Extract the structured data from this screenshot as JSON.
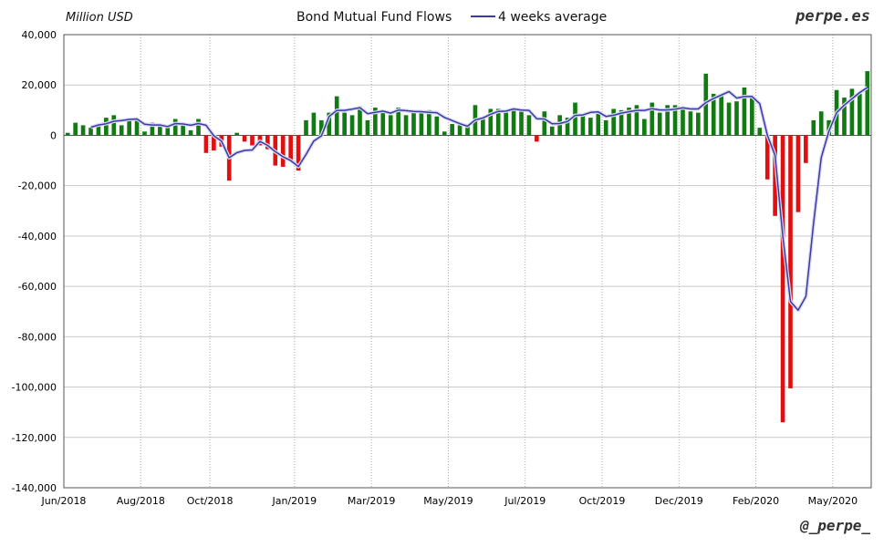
{
  "chart_data": {
    "type": "bar",
    "title": "Bond Mutual Fund Flows",
    "ylabel": "Million USD",
    "ylim": [
      -140000,
      40000
    ],
    "yticks": [
      40000,
      20000,
      0,
      -20000,
      -40000,
      -60000,
      -80000,
      -100000,
      -120000,
      -140000
    ],
    "ytick_labels": [
      "40,000",
      "20,000",
      "0",
      "-20,000",
      "-40,000",
      "-60,000",
      "-80,000",
      "-100,000",
      "-120,000",
      "-140,000"
    ],
    "xtick_labels": [
      "Jun/2018",
      "Aug/2018",
      "Oct/2018",
      "Jan/2019",
      "Mar/2019",
      "May/2019",
      "Jul/2019",
      "Oct/2019",
      "Dec/2019",
      "Feb/2020",
      "May/2020"
    ],
    "xtick_week_index": [
      0,
      10,
      19,
      30,
      40,
      50,
      60,
      70,
      80,
      90,
      100
    ],
    "grid": true,
    "positive_color": "#127a12",
    "negative_color": "#e01010",
    "line_color": "#3a3aa8",
    "series": [
      {
        "name": "Bond Mutual Fund Flows",
        "kind": "bar",
        "values": [
          1000,
          5000,
          4000,
          3000,
          4500,
          7000,
          8000,
          4000,
          6000,
          6000,
          1500,
          5000,
          4000,
          3500,
          6500,
          4000,
          2000,
          6500,
          -7000,
          -6000,
          -4500,
          -18000,
          1000,
          -2500,
          -4000,
          -4000,
          -5500,
          -12000,
          -12500,
          -10000,
          -14000,
          6000,
          9000,
          6000,
          9000,
          15500,
          9000,
          8000,
          11500,
          6000,
          11000,
          10000,
          8000,
          11000,
          8000,
          9000,
          9500,
          10000,
          7500,
          1500,
          4500,
          4000,
          4000,
          12000,
          7000,
          10500,
          10500,
          10000,
          11000,
          10500,
          8000,
          -2500,
          9500,
          3500,
          8000,
          7000,
          13000,
          8500,
          7000,
          8500,
          6000,
          10500,
          10000,
          11000,
          12000,
          6500,
          13000,
          9000,
          12000,
          12000,
          10500,
          9500,
          9000,
          24500,
          16500,
          16000,
          13000,
          13500,
          19000,
          15000,
          3000,
          -17500,
          -32000,
          -114000,
          -100500,
          -30500,
          -11000,
          6000,
          9500,
          6000,
          18000,
          15000,
          18500,
          16500,
          25500
        ]
      },
      {
        "name": "4 weeks average",
        "kind": "line",
        "values": [
          null,
          null,
          null,
          3200,
          4100,
          4600,
          5600,
          5900,
          6300,
          6500,
          4400,
          4100,
          4100,
          3500,
          4700,
          4500,
          4000,
          4700,
          4000,
          -200,
          -2300,
          -8900,
          -6900,
          -6000,
          -5800,
          -2400,
          -4000,
          -6500,
          -8500,
          -10000,
          -12400,
          -7600,
          -2300,
          -200,
          7500,
          9900,
          9900,
          10400,
          11000,
          8600,
          9100,
          9600,
          8800,
          10000,
          9800,
          9500,
          9400,
          9100,
          9000,
          7100,
          5900,
          4600,
          3600,
          6100,
          6900,
          8400,
          9500,
          9600,
          10500,
          10000,
          9900,
          6600,
          6500,
          4600,
          4700,
          5500,
          7900,
          8100,
          9100,
          9300,
          7500,
          8000,
          8800,
          9400,
          9900,
          9900,
          10600,
          10100,
          10100,
          10400,
          10900,
          10500,
          10500,
          13000,
          14600,
          16000,
          17400,
          14800,
          15400,
          15400,
          12600,
          0,
          -7900,
          -40000,
          -66000,
          -69500,
          -64000,
          -35000,
          -8900,
          1600,
          9000,
          12000,
          14500,
          17000,
          19000
        ]
      }
    ]
  },
  "labels": {
    "unit": "Million USD",
    "title": "Bond Mutual Fund Flows",
    "legend": "4 weeks average",
    "brand": "perpe.es",
    "handle": "@_perpe_"
  }
}
